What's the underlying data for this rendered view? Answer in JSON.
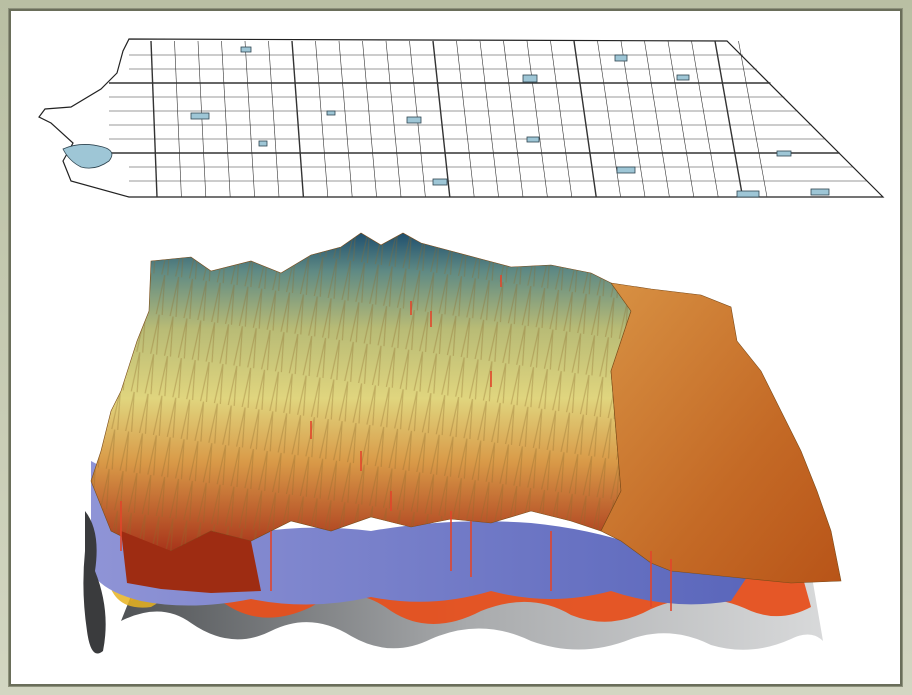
{
  "colors": {
    "frame": "#c3c8ae",
    "panel": "#ffffff",
    "water": "#9ec6d6",
    "grid": "#222222",
    "terrain_high": "#1f4f6e",
    "terrain_mid": "#d8d27a",
    "terrain_low": "#c2571c",
    "subsurface_blue": "#6f78c8",
    "subsurface_orange": "#e6501d",
    "subsurface_gray": "#9fa1a3"
  },
  "layers": [
    {
      "name": "township-grid-map",
      "icon": "grid-map-icon"
    },
    {
      "name": "terrain-surface",
      "icon": "terrain-icon"
    },
    {
      "name": "subsurface-layers",
      "icon": "strata-icon"
    }
  ]
}
